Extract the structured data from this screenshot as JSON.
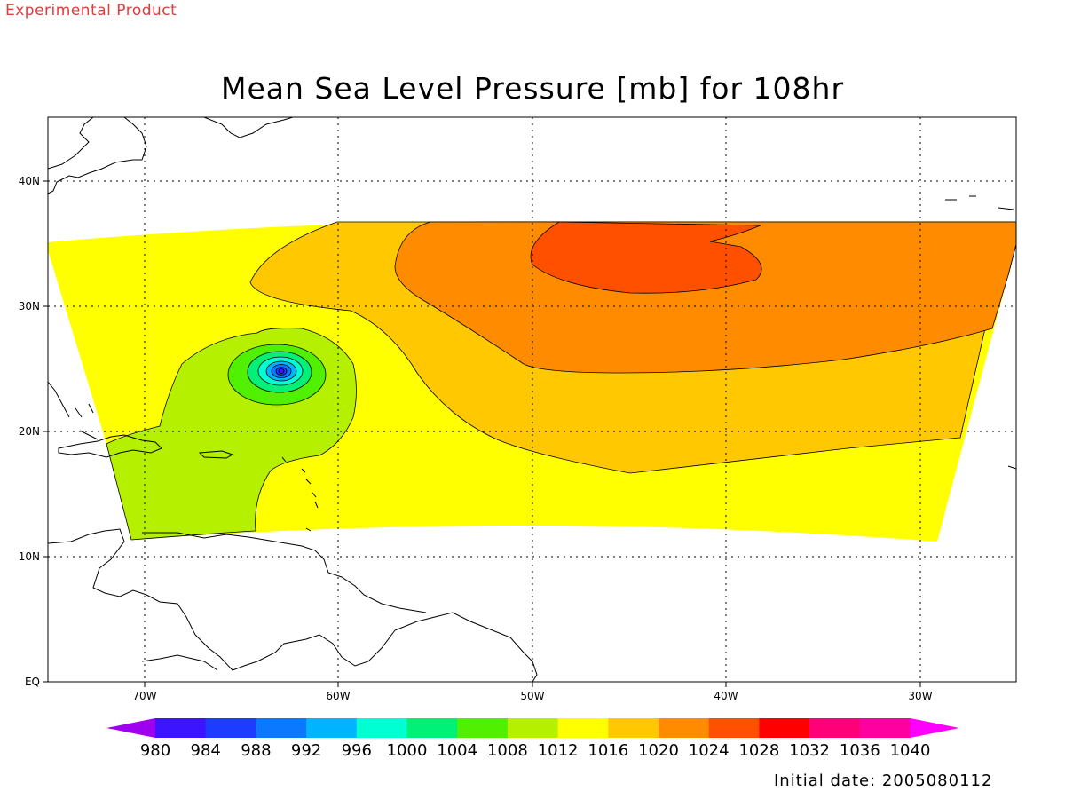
{
  "banner": "Experimental Product",
  "title": "Mean Sea Level Pressure [mb] for 108hr",
  "footer": "Initial date: 2005080112",
  "map": {
    "lon_ticks": [
      "70W",
      "60W",
      "50W",
      "40W",
      "30W"
    ],
    "lat_ticks": [
      "EQ",
      "10N",
      "20N",
      "30N",
      "40N"
    ],
    "grid": "dotted"
  },
  "colorbar": {
    "levels": [
      "980",
      "984",
      "988",
      "992",
      "996",
      "1000",
      "1004",
      "1008",
      "1012",
      "1016",
      "1020",
      "1024",
      "1028",
      "1032",
      "1036",
      "1040"
    ],
    "colors": [
      "#a000f0",
      "#3c14ff",
      "#1e3cff",
      "#0a78ff",
      "#00b4ff",
      "#00ffd2",
      "#00f078",
      "#50f000",
      "#b4f000",
      "#ffff00",
      "#ffc800",
      "#ff8c00",
      "#ff5000",
      "#ff0000",
      "#ff0078",
      "#ff00a0",
      "#ff00ff"
    ]
  },
  "fields": {
    "colors": {
      "g1008": "#b4f000",
      "g1004": "#50f000",
      "g1000": "#00f078",
      "c996": "#00ffd2",
      "c992": "#00b4ff",
      "c988": "#0a78ff",
      "c984": "#1e3cff",
      "c980": "#3c14ff",
      "y1012": "#ffff00",
      "o1016": "#ffc800",
      "o1020": "#ff8c00",
      "r1024": "#ff5000"
    }
  }
}
